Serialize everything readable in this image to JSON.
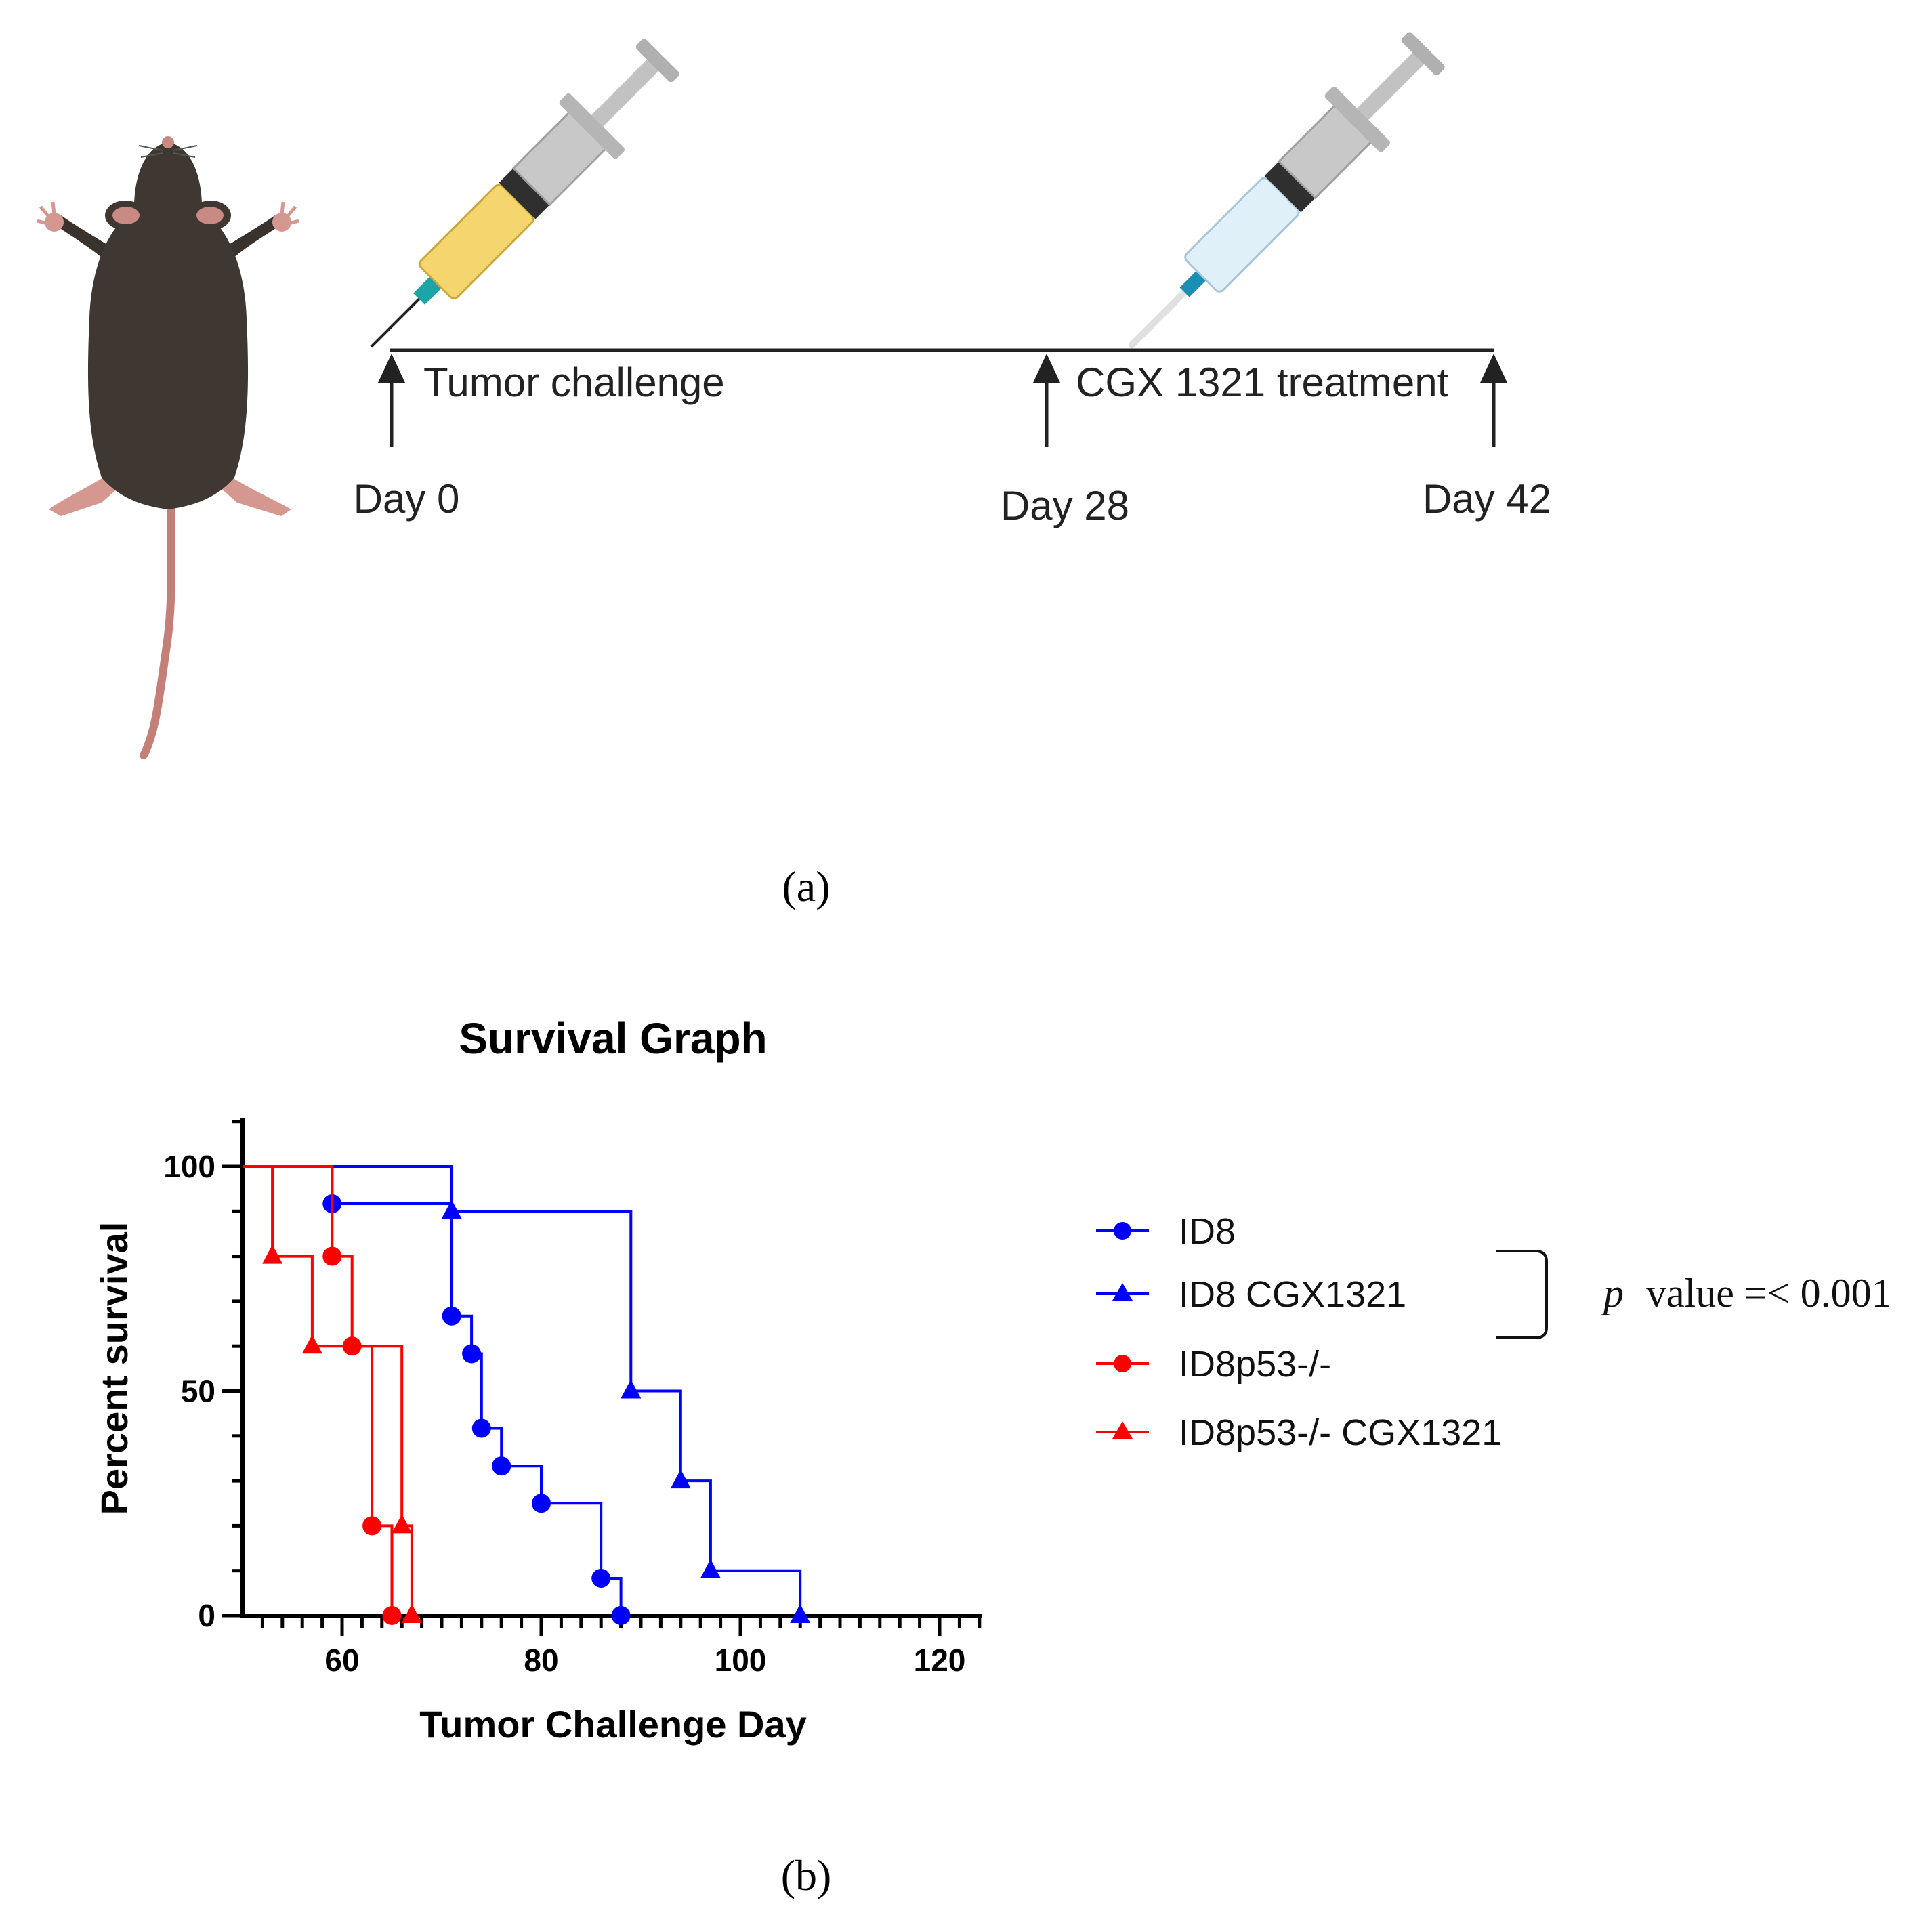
{
  "panel_a": {
    "label": "(a)",
    "events": [
      {
        "label": "Tumor challenge",
        "day": "Day 0"
      },
      {
        "label": "CGX 1321 treatment",
        "day": "Day 28"
      },
      {
        "label": "",
        "day": "Day 42"
      }
    ]
  },
  "panel_b": {
    "label": "(b)",
    "p_value": {
      "symbol": "p",
      "text": "value =< 0.001"
    }
  },
  "colors": {
    "blue": "#0000ff",
    "red": "#ff0000",
    "axis": "#000000"
  },
  "chart_data": {
    "type": "line",
    "subtype": "kaplan-meier",
    "title": "Survival Graph",
    "xlabel": "Tumor Challenge Day",
    "ylabel": "Percent survival",
    "xlim": [
      50,
      125
    ],
    "ylim": [
      0,
      110
    ],
    "xticks": [
      60,
      80,
      100,
      120
    ],
    "yticks": [
      0,
      50,
      100
    ],
    "legend_position": "right",
    "series": [
      {
        "name": "ID8",
        "color": "#0000ff",
        "marker": "circle",
        "x": [
          59,
          71,
          73,
          74,
          76,
          80,
          86,
          88
        ],
        "y": [
          91.7,
          66.7,
          58.3,
          41.7,
          33.3,
          25.0,
          8.3,
          0
        ]
      },
      {
        "name": "ID8 CGX1321",
        "color": "#0000ff",
        "marker": "triangle",
        "x": [
          71,
          89,
          94,
          97,
          106
        ],
        "y": [
          90,
          50,
          30,
          10,
          0
        ]
      },
      {
        "name": "ID8p53-/-",
        "color": "#ff0000",
        "marker": "circle",
        "x": [
          59,
          61,
          63,
          65
        ],
        "y": [
          80,
          60,
          20,
          0
        ]
      },
      {
        "name": "ID8p53-/- CGX1321",
        "color": "#ff0000",
        "marker": "triangle",
        "x": [
          53,
          57,
          66,
          67
        ],
        "y": [
          80,
          60,
          20,
          0
        ]
      }
    ]
  }
}
